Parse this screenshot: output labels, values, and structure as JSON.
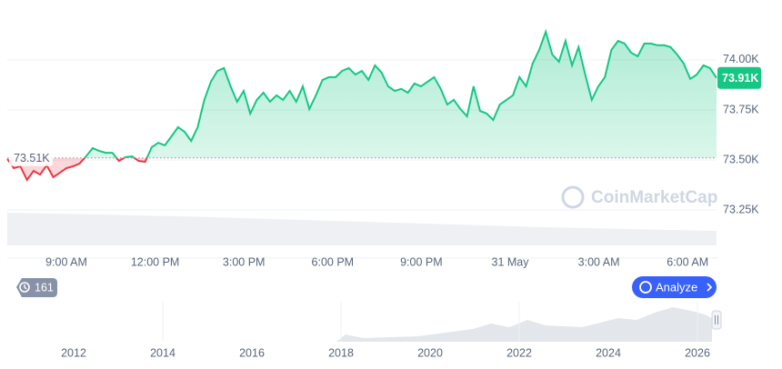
{
  "chart_data": {
    "type": "line",
    "values": [
      73505,
      73459,
      73468,
      73400,
      73445,
      73427,
      73473,
      73414,
      73436,
      73459,
      73468,
      73482,
      73518,
      73559,
      73545,
      73536,
      73536,
      73495,
      73514,
      73518,
      73495,
      73491,
      73564,
      73586,
      73573,
      73618,
      73664,
      73641,
      73595,
      73664,
      73800,
      73891,
      73945,
      73959,
      73868,
      73791,
      73845,
      73732,
      73800,
      73836,
      73791,
      73823,
      73800,
      73845,
      73791,
      73868,
      73755,
      73823,
      73900,
      73914,
      73914,
      73945,
      73959,
      73927,
      73945,
      73900,
      73973,
      73936,
      73868,
      73845,
      73855,
      73836,
      73882,
      73868,
      73891,
      73914,
      73855,
      73777,
      73800,
      73755,
      73718,
      73868,
      73745,
      73732,
      73700,
      73777,
      73800,
      73823,
      73914,
      73868,
      73982,
      74050,
      74141,
      74027,
      73991,
      74095,
      73973,
      74064,
      73927,
      73800,
      73868,
      73914,
      74050,
      74095,
      74082,
      74036,
      74018,
      74082,
      74082,
      74073,
      74073,
      74064,
      74027,
      73982,
      73905,
      73927,
      73973,
      73959,
      73910
    ],
    "x_labels": [
      "9:00 AM",
      "12:00 PM",
      "3:00 PM",
      "6:00 PM",
      "9:00 PM",
      "31 May",
      "3:00 AM",
      "6:00 AM"
    ],
    "ylim": [
      73073,
      74254
    ],
    "yticks": [
      {
        "value": 73250,
        "label": "73.25K"
      },
      {
        "value": 73500,
        "label": "73.50K"
      },
      {
        "value": 73750,
        "label": "73.75K"
      },
      {
        "value": 74000,
        "label": "74.00K"
      }
    ],
    "baseline": {
      "value": 73510,
      "label": "73.51K"
    },
    "current_price": {
      "value": 73910,
      "label": "73.91K"
    },
    "up_color": "#16c784",
    "down_color": "#ea3943",
    "grid": true,
    "navigator_years": [
      2012,
      2014,
      2016,
      2018,
      2020,
      2022,
      2024,
      2026
    ]
  },
  "watermark": "CoinMarketCap",
  "controls": {
    "history": "161",
    "analyze": "Analyze"
  }
}
